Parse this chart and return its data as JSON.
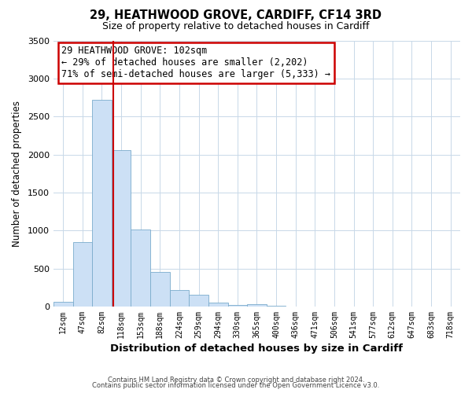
{
  "title": "29, HEATHWOOD GROVE, CARDIFF, CF14 3RD",
  "subtitle": "Size of property relative to detached houses in Cardiff",
  "xlabel": "Distribution of detached houses by size in Cardiff",
  "ylabel": "Number of detached properties",
  "footer_lines": [
    "Contains HM Land Registry data © Crown copyright and database right 2024.",
    "Contains public sector information licensed under the Open Government Licence v3.0."
  ],
  "bin_labels": [
    "12sqm",
    "47sqm",
    "82sqm",
    "118sqm",
    "153sqm",
    "188sqm",
    "224sqm",
    "259sqm",
    "294sqm",
    "330sqm",
    "365sqm",
    "400sqm",
    "436sqm",
    "471sqm",
    "506sqm",
    "541sqm",
    "577sqm",
    "612sqm",
    "647sqm",
    "683sqm",
    "718sqm"
  ],
  "bar_values": [
    60,
    850,
    2720,
    2060,
    1010,
    455,
    215,
    150,
    55,
    20,
    30,
    5,
    0,
    0,
    0,
    0,
    0,
    0,
    0,
    0,
    0
  ],
  "bar_color": "#cce0f5",
  "bar_edge_color": "#7aabcc",
  "vline_x_index": 2.57,
  "vline_color": "#cc0000",
  "ylim": [
    0,
    3500
  ],
  "yticks": [
    0,
    500,
    1000,
    1500,
    2000,
    2500,
    3000,
    3500
  ],
  "annotation_text": "29 HEATHWOOD GROVE: 102sqm\n← 29% of detached houses are smaller (2,202)\n71% of semi-detached houses are larger (5,333) →",
  "annotation_box_color": "#ffffff",
  "annotation_border_color": "#cc0000",
  "bg_color": "#ffffff",
  "grid_color": "#c8d8e8"
}
